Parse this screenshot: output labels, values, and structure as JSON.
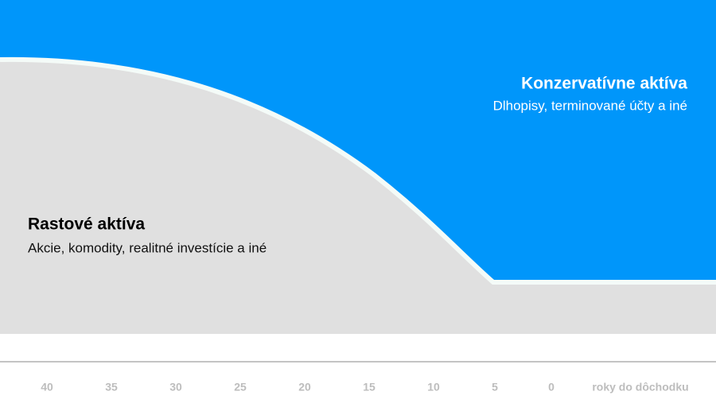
{
  "conservative": {
    "title": "Konzervatívne aktíva",
    "subtitle": "Dlhopisy, terminované účty a iné"
  },
  "growth": {
    "title": "Rastové aktíva",
    "subtitle": "Akcie, komodity, realitné investície a iné"
  },
  "axis": {
    "ticks": [
      "40",
      "35",
      "30",
      "25",
      "20",
      "15",
      "10",
      "5",
      "0"
    ],
    "label": "roky do dôchodku"
  }
}
